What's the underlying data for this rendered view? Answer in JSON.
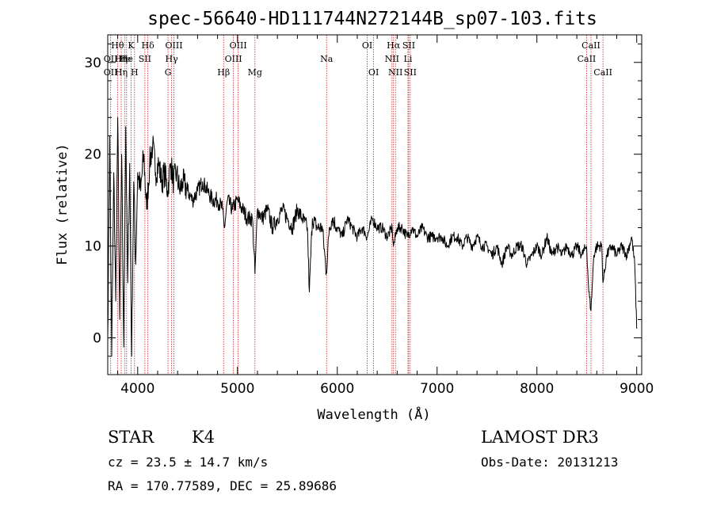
{
  "chart_data": {
    "type": "line",
    "title": "spec-56640-HD111744N272144B_sp07-103.fits",
    "xlabel": "Wavelength (Å)",
    "ylabel": "Flux (relative)",
    "xlim": [
      3700,
      9050
    ],
    "ylim": [
      -4,
      33
    ],
    "xticks": [
      4000,
      5000,
      6000,
      7000,
      8000,
      9000
    ],
    "yticks": [
      0,
      10,
      20,
      30
    ],
    "series": [
      {
        "name": "spectrum",
        "x": [
          3700,
          3720,
          3740,
          3760,
          3780,
          3800,
          3820,
          3840,
          3860,
          3880,
          3900,
          3920,
          3940,
          3960,
          3980,
          4000,
          4030,
          4060,
          4090,
          4120,
          4150,
          4180,
          4210,
          4240,
          4270,
          4300,
          4330,
          4360,
          4390,
          4420,
          4450,
          4500,
          4550,
          4600,
          4650,
          4700,
          4750,
          4800,
          4850,
          4870,
          4900,
          4950,
          5000,
          5050,
          5100,
          5150,
          5175,
          5200,
          5250,
          5300,
          5350,
          5400,
          5450,
          5500,
          5550,
          5600,
          5650,
          5700,
          5720,
          5750,
          5800,
          5850,
          5890,
          5920,
          5950,
          6000,
          6050,
          6100,
          6150,
          6200,
          6250,
          6300,
          6350,
          6400,
          6450,
          6500,
          6550,
          6563,
          6600,
          6650,
          6700,
          6750,
          6800,
          6850,
          6900,
          6950,
          7000,
          7050,
          7100,
          7150,
          7200,
          7250,
          7300,
          7350,
          7400,
          7450,
          7500,
          7550,
          7600,
          7650,
          7700,
          7750,
          7800,
          7850,
          7900,
          7950,
          8000,
          8050,
          8100,
          8150,
          8200,
          8250,
          8300,
          8350,
          8400,
          8450,
          8498,
          8520,
          8542,
          8570,
          8600,
          8650,
          8662,
          8700,
          8750,
          8800,
          8850,
          8900,
          8950,
          8980,
          9000
        ],
        "y": [
          0,
          22,
          -2,
          18,
          4,
          24,
          2,
          20,
          -1,
          23,
          6,
          19,
          -2,
          17,
          8,
          18,
          16,
          20,
          14,
          19,
          21,
          18,
          19,
          17,
          18,
          16,
          19,
          17,
          18,
          16,
          17,
          16,
          15,
          16,
          17,
          16,
          15,
          15,
          14,
          12,
          15,
          14,
          15,
          14,
          13,
          13,
          7,
          14,
          13,
          14,
          12,
          13,
          14,
          13,
          12,
          14,
          13,
          12,
          5,
          13,
          12,
          12,
          7,
          12,
          13,
          12,
          11,
          13,
          12,
          11,
          12,
          11,
          13,
          12,
          12,
          11,
          12,
          10,
          12,
          12,
          11,
          12,
          11,
          12,
          11,
          11,
          11,
          11,
          10,
          11,
          11,
          10,
          11,
          10,
          11,
          10,
          10,
          9,
          10,
          8,
          10,
          9,
          10,
          10,
          8,
          9,
          10,
          9,
          11,
          9,
          10,
          9,
          10,
          9,
          10,
          9,
          10,
          5,
          3,
          9,
          10,
          10,
          6,
          9,
          10,
          9,
          10,
          9,
          11,
          8,
          1
        ]
      }
    ],
    "spectral_lines": [
      {
        "wavelength": 3729,
        "rows": [
          "",
          "OII",
          "OII"
        ]
      },
      {
        "wavelength": 3798,
        "rows": [
          "Hθ",
          "",
          ""
        ]
      },
      {
        "wavelength": 3835,
        "rows": [
          "",
          "Hη",
          "Hη"
        ]
      },
      {
        "wavelength": 3869,
        "rows": [
          "",
          "He",
          ""
        ]
      },
      {
        "wavelength": 3889,
        "rows": [
          "",
          "He",
          ""
        ]
      },
      {
        "wavelength": 3934,
        "rows": [
          "K",
          "",
          ""
        ]
      },
      {
        "wavelength": 3968,
        "rows": [
          "",
          "",
          "H"
        ]
      },
      {
        "wavelength": 4072,
        "rows": [
          "",
          "SII",
          ""
        ]
      },
      {
        "wavelength": 4102,
        "rows": [
          "Hδ",
          "",
          ""
        ]
      },
      {
        "wavelength": 4304,
        "rows": [
          "",
          "",
          "G"
        ]
      },
      {
        "wavelength": 4340,
        "rows": [
          "",
          "Hγ",
          ""
        ]
      },
      {
        "wavelength": 4363,
        "rows": [
          "OIII",
          "",
          ""
        ]
      },
      {
        "wavelength": 4861,
        "rows": [
          "",
          "",
          "Hβ"
        ]
      },
      {
        "wavelength": 4959,
        "rows": [
          "",
          "OIII",
          ""
        ]
      },
      {
        "wavelength": 5007,
        "rows": [
          "OIII",
          "",
          ""
        ]
      },
      {
        "wavelength": 5175,
        "rows": [
          "",
          "",
          "Mg"
        ]
      },
      {
        "wavelength": 5893,
        "rows": [
          "",
          "Na",
          ""
        ]
      },
      {
        "wavelength": 6300,
        "rows": [
          "OI",
          "",
          ""
        ]
      },
      {
        "wavelength": 6364,
        "rows": [
          "",
          "",
          "OI"
        ]
      },
      {
        "wavelength": 6548,
        "rows": [
          "",
          "NII",
          ""
        ]
      },
      {
        "wavelength": 6563,
        "rows": [
          "Hα",
          "",
          ""
        ]
      },
      {
        "wavelength": 6583,
        "rows": [
          "",
          "",
          "NII"
        ]
      },
      {
        "wavelength": 6708,
        "rows": [
          "",
          "Li",
          ""
        ]
      },
      {
        "wavelength": 6716,
        "rows": [
          "SII",
          "",
          ""
        ]
      },
      {
        "wavelength": 6731,
        "rows": [
          "",
          "",
          "SII"
        ]
      },
      {
        "wavelength": 8498,
        "rows": [
          "",
          "CaII",
          ""
        ]
      },
      {
        "wavelength": 8542,
        "rows": [
          "CaII",
          "",
          ""
        ]
      },
      {
        "wavelength": 8662,
        "rows": [
          "",
          "",
          "CaII"
        ]
      }
    ]
  },
  "info": {
    "class": "STAR",
    "subclass": "K4",
    "survey": "LAMOST DR3",
    "cz": "cz = 23.5 ± 14.7 km/s",
    "obs_date": "Obs-Date: 20131213",
    "radec": "RA = 170.77589, DEC =  25.89686"
  },
  "colors": {
    "line_marker": "#cc2222",
    "spectrum": "#000000"
  }
}
